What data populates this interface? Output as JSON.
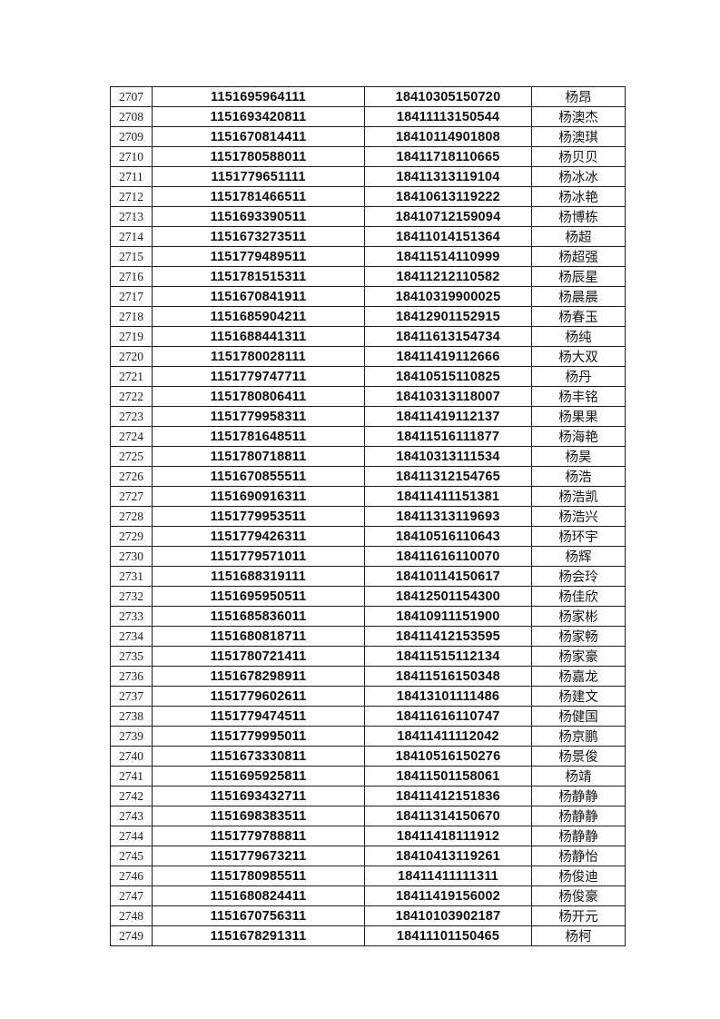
{
  "page": {
    "background_color": "#ffffff",
    "border_color": "#1c1c1c",
    "text_color": "#111111"
  },
  "table": {
    "column_count": 4,
    "row_count": 43,
    "rows": [
      [
        "2707",
        "1151695964111",
        "18410305150720",
        "杨昂"
      ],
      [
        "2708",
        "1151693420811",
        "18411113150544",
        "杨澳杰"
      ],
      [
        "2709",
        "1151670814411",
        "18410114901808",
        "杨澳琪"
      ],
      [
        "2710",
        "1151780588011",
        "18411718110665",
        "杨贝贝"
      ],
      [
        "2711",
        "1151779651111",
        "18411313119104",
        "杨冰冰"
      ],
      [
        "2712",
        "1151781466511",
        "18410613119222",
        "杨冰艳"
      ],
      [
        "2713",
        "1151693390511",
        "18410712159094",
        "杨博栋"
      ],
      [
        "2714",
        "1151673273511",
        "18411014151364",
        "杨超"
      ],
      [
        "2715",
        "1151779489511",
        "18411514110999",
        "杨超强"
      ],
      [
        "2716",
        "1151781515311",
        "18411212110582",
        "杨辰星"
      ],
      [
        "2717",
        "1151670841911",
        "18410319900025",
        "杨晨晨"
      ],
      [
        "2718",
        "1151685904211",
        "18412901152915",
        "杨春玉"
      ],
      [
        "2719",
        "1151688441311",
        "18411613154734",
        "杨纯"
      ],
      [
        "2720",
        "1151780028111",
        "18411419112666",
        "杨大双"
      ],
      [
        "2721",
        "1151779747711",
        "18410515110825",
        "杨丹"
      ],
      [
        "2722",
        "1151780806411",
        "18410313118007",
        "杨丰铭"
      ],
      [
        "2723",
        "1151779958311",
        "18411419112137",
        "杨果果"
      ],
      [
        "2724",
        "1151781648511",
        "18411516111877",
        "杨海艳"
      ],
      [
        "2725",
        "1151780718811",
        "18410313111534",
        "杨昊"
      ],
      [
        "2726",
        "1151670855511",
        "18411312154765",
        "杨浩"
      ],
      [
        "2727",
        "1151690916311",
        "18411411151381",
        "杨浩凯"
      ],
      [
        "2728",
        "1151779953511",
        "18411313119693",
        "杨浩兴"
      ],
      [
        "2729",
        "1151779426311",
        "18410516110643",
        "杨环宇"
      ],
      [
        "2730",
        "1151779571011",
        "18411616110070",
        "杨辉"
      ],
      [
        "2731",
        "1151688319111",
        "18410114150617",
        "杨会玲"
      ],
      [
        "2732",
        "1151695950511",
        "18412501154300",
        "杨佳欣"
      ],
      [
        "2733",
        "1151685836011",
        "18410911151900",
        "杨家彬"
      ],
      [
        "2734",
        "1151680818711",
        "18411412153595",
        "杨家畅"
      ],
      [
        "2735",
        "1151780721411",
        "18411515112134",
        "杨家豪"
      ],
      [
        "2736",
        "1151678298911",
        "18411516150348",
        "杨嘉龙"
      ],
      [
        "2737",
        "1151779602611",
        "18413101111486",
        "杨建文"
      ],
      [
        "2738",
        "1151779474511",
        "18411616110747",
        "杨健国"
      ],
      [
        "2739",
        "1151779995011",
        "18411411112042",
        "杨京鹏"
      ],
      [
        "2740",
        "1151673330811",
        "18410516150276",
        "杨景俊"
      ],
      [
        "2741",
        "1151695925811",
        "18411501158061",
        "杨靖"
      ],
      [
        "2742",
        "1151693432711",
        "18411412151836",
        "杨静静"
      ],
      [
        "2743",
        "1151698383511",
        "18411314150670",
        "杨静静"
      ],
      [
        "2744",
        "1151779788811",
        "18411418111912",
        "杨静静"
      ],
      [
        "2745",
        "1151779673211",
        "18410413119261",
        "杨静怡"
      ],
      [
        "2746",
        "1151780985511",
        "18411411111311",
        "杨俊迪"
      ],
      [
        "2747",
        "1151680824411",
        "18411419156002",
        "杨俊豪"
      ],
      [
        "2748",
        "1151670756311",
        "18410103902187",
        "杨开元"
      ],
      [
        "2749",
        "1151678291311",
        "18411101150465",
        "杨柯"
      ]
    ]
  }
}
